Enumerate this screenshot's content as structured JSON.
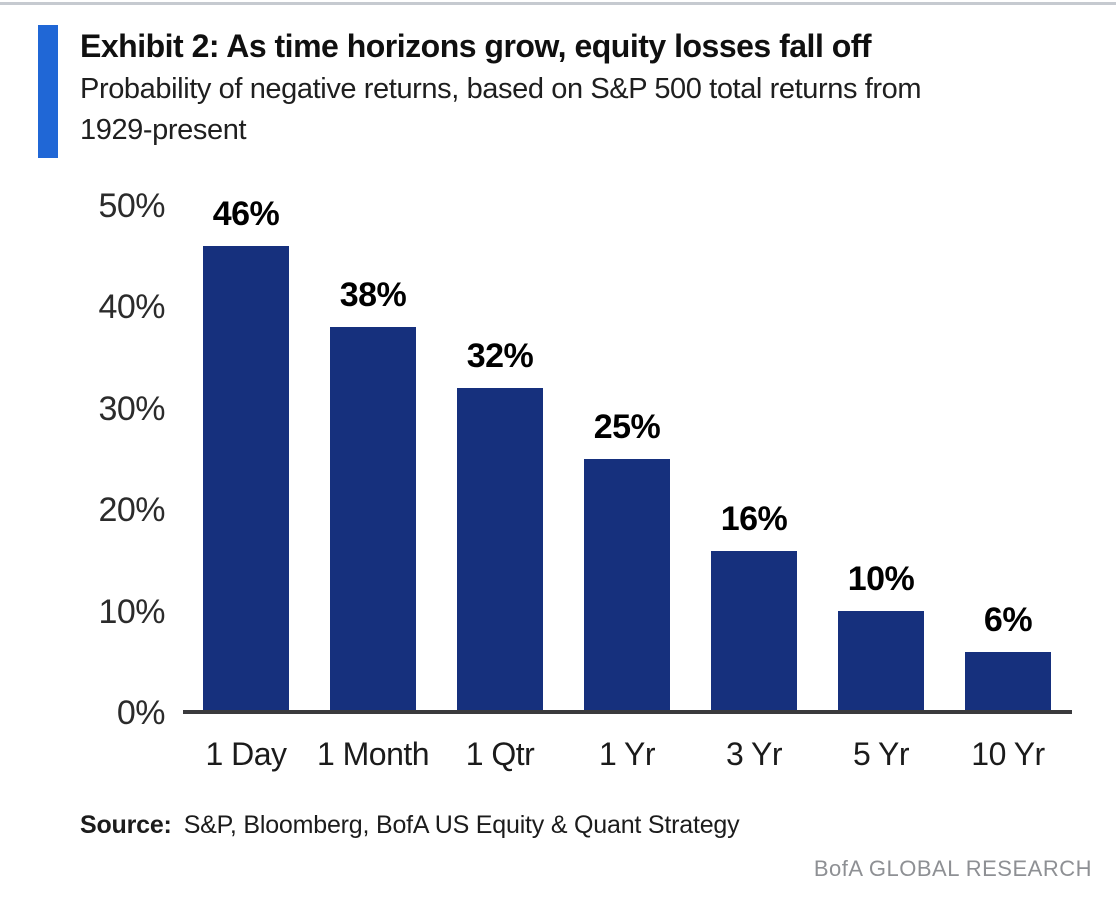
{
  "header": {
    "title": "Exhibit 2: As time horizons grow, equity losses fall off",
    "subtitle": "Probability of negative returns, based on S&P 500 total returns from\n1929-present"
  },
  "chart_data": {
    "type": "bar",
    "title": "Exhibit 2: As time horizons grow, equity losses fall off",
    "subtitle": "Probability of negative returns, based on S&P 500 total returns from 1929-present",
    "categories": [
      "1 Day",
      "1 Month",
      "1 Qtr",
      "1 Yr",
      "3 Yr",
      "5 Yr",
      "10 Yr"
    ],
    "values": [
      46,
      38,
      32,
      25,
      16,
      10,
      6
    ],
    "value_labels": [
      "46%",
      "38%",
      "32%",
      "25%",
      "16%",
      "10%",
      "6%"
    ],
    "xlabel": "",
    "ylabel": "",
    "ylim": [
      0,
      50
    ],
    "ytick_values": [
      50,
      40,
      30,
      20,
      10,
      0
    ],
    "yticks": [
      "50%",
      "40%",
      "30%",
      "20%",
      "10%",
      "0%"
    ],
    "grid": false,
    "legend_position": "none",
    "bar_color": "#16307d"
  },
  "footer": {
    "source_label": "Source:",
    "source_text": "S&P, Bloomberg, BofA US Equity & Quant Strategy",
    "brand": "BofA GLOBAL RESEARCH"
  },
  "colors": {
    "bar": "#16307d",
    "accent": "#2067d6",
    "axis": "#3a3a3d",
    "brand_gray": "#8e9094"
  }
}
